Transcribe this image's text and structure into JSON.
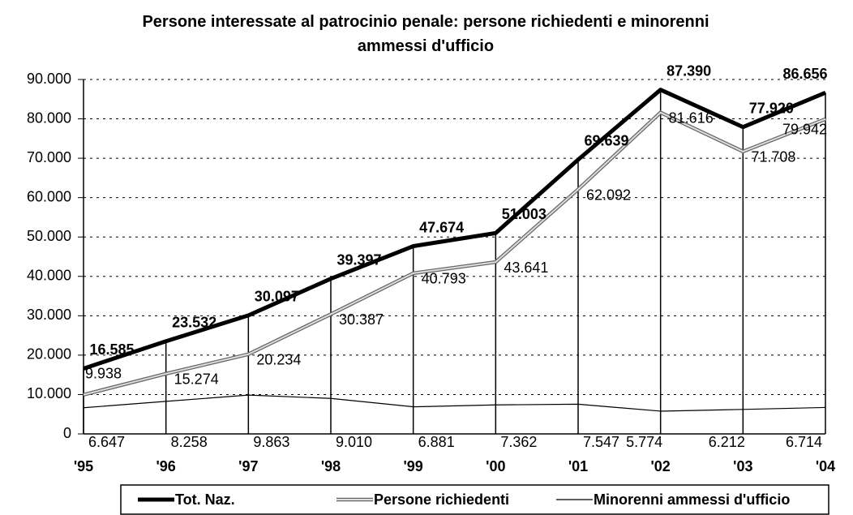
{
  "chart_data": {
    "type": "line",
    "title": "Persone interessate al patrocinio penale: persone richiedenti e minorenni ammessi d'ufficio",
    "categories": [
      "'95",
      "'96",
      "'97",
      "'98",
      "'99",
      "'00",
      "'01",
      "'02",
      "'03",
      "'04"
    ],
    "series": [
      {
        "name": "Tot. Naz.",
        "color": "#000000",
        "values": [
          16585,
          23532,
          30097,
          39397,
          47674,
          51003,
          69639,
          87390,
          77920,
          86656
        ],
        "value_labels": [
          "16.585",
          "23.532",
          "30.097",
          "39.397",
          "47.674",
          "51.003",
          "69.639",
          "87.390",
          "77.920",
          "86.656"
        ]
      },
      {
        "name": "Persone richiedenti",
        "color": "#999999",
        "values": [
          9938,
          15274,
          20234,
          30387,
          40793,
          43641,
          62092,
          81616,
          71708,
          79942
        ],
        "value_labels": [
          "9.938",
          "15.274",
          "20.234",
          "30.387",
          "40.793",
          "43.641",
          "62.092",
          "81.616",
          "71.708",
          "79.942"
        ]
      },
      {
        "name": "Minorenni ammessi d'ufficio",
        "color": "#000000",
        "values": [
          6647,
          8258,
          9863,
          9010,
          6881,
          7362,
          7547,
          5774,
          6212,
          6714
        ],
        "value_labels": [
          "6.647",
          "8.258",
          "9.863",
          "9.010",
          "6.881",
          "7.362",
          "7.547",
          "5.774",
          "6.212",
          "6.714"
        ]
      }
    ],
    "ylim": [
      0,
      90000
    ],
    "yticks": [
      0,
      {
        "value": 10000,
        "label": "10.000"
      },
      {
        "value": 20000,
        "label": "20.000"
      },
      {
        "value": 30000,
        "label": "30.000"
      },
      {
        "value": 40000,
        "label": "40.000"
      },
      {
        "value": 50000,
        "label": "50.000"
      },
      {
        "value": 60000,
        "label": "60.000"
      },
      {
        "value": 70000,
        "label": "70.000"
      },
      {
        "value": 80000,
        "label": "80.000"
      },
      {
        "value": 90000,
        "label": "90.000"
      }
    ],
    "grid": true,
    "legend": "bottom"
  }
}
